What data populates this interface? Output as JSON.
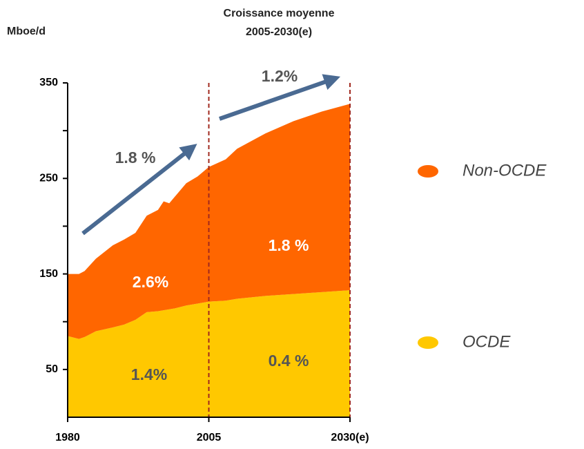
{
  "chart_data": {
    "type": "stacked_area",
    "title": [
      "Croissance moyenne",
      "2005-2030(e)"
    ],
    "y_label": "Mboe/d",
    "x": [
      1980,
      1982,
      1983,
      1985,
      1988,
      1990,
      1992,
      1994,
      1996,
      1997,
      1998,
      1999,
      2001,
      2003,
      2005,
      2008,
      2010,
      2015,
      2020,
      2025,
      2030
    ],
    "series": [
      {
        "name": "OCDE",
        "color": "#ffc800",
        "values": [
          85,
          82,
          84,
          90,
          94,
          97,
          102,
          110,
          111,
          112,
          113,
          114,
          117,
          119,
          121,
          122,
          124,
          127,
          129,
          131,
          133
        ]
      },
      {
        "name": "Non-OCDE",
        "color": "#ff6600",
        "values": [
          65,
          68,
          69,
          76,
          86,
          89,
          91,
          101,
          106,
          114,
          111,
          117,
          128,
          133,
          141,
          148,
          157,
          170,
          181,
          189,
          195
        ]
      }
    ],
    "xlim": [
      1980,
      2030
    ],
    "xticks": [
      1980,
      2005,
      {
        "value": 2030,
        "label": "2030(e)"
      }
    ],
    "ylim": [
      0,
      350
    ],
    "yticks": [
      50,
      150,
      250,
      350
    ],
    "minor_yticks": [
      100,
      200,
      300
    ],
    "vlines": [
      2005,
      2030
    ],
    "annotations": [
      "1.8 %",
      "1.2%",
      "2.6%",
      "1.4%",
      "1.8 %",
      "0.4 %"
    ],
    "legend": "right"
  }
}
